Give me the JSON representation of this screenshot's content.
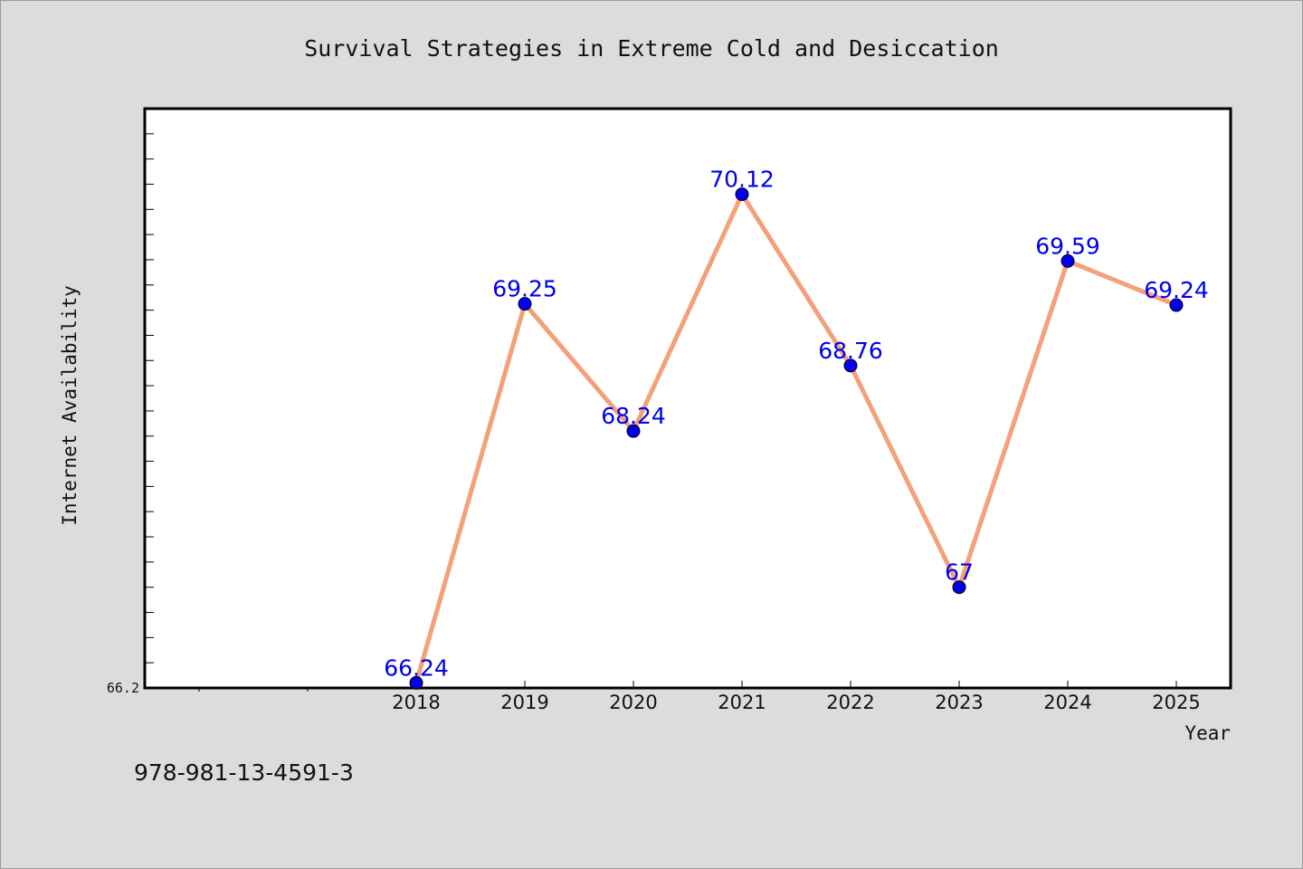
{
  "chart_data": {
    "type": "line",
    "title": "Survival Strategies in Extreme Cold and Desiccation",
    "xlabel": "Year",
    "ylabel": "Internet Availability",
    "categories": [
      "2018",
      "2019",
      "2020",
      "2021",
      "2022",
      "2023",
      "2024",
      "2025"
    ],
    "values": [
      66.24,
      69.25,
      68.24,
      70.12,
      68.76,
      67,
      69.59,
      69.24
    ],
    "data_labels": [
      "66.24",
      "69.25",
      "68.24",
      "70.12",
      "68.76",
      "67",
      "69.59",
      "69.24"
    ],
    "x_slots": 10,
    "y_tick_labels": [
      {
        "value": 66.2,
        "label": "66.2"
      }
    ],
    "ylim": [
      66.2,
      70.8
    ],
    "grid": false,
    "legend": "none",
    "colors": {
      "line": "#f4a07a",
      "marker": "#0000ee",
      "label": "#0000ee",
      "plot_bg": "#ffffff",
      "page_bg": "#dcdcdc"
    }
  },
  "footer": {
    "isbn": "978-981-13-4591-3"
  }
}
